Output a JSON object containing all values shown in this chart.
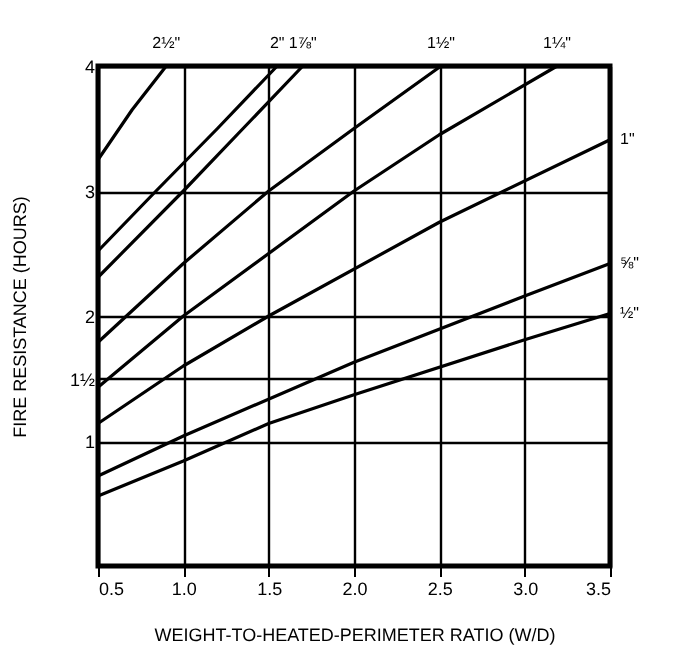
{
  "chart_data": {
    "type": "line",
    "xlabel": "WEIGHT-TO-HEATED-PERIMETER RATIO (W/D)",
    "ylabel": "FIRE RESISTANCE (HOURS)",
    "xlim": [
      0.5,
      3.5
    ],
    "ylim": [
      0,
      4
    ],
    "xticks": [
      {
        "value": 0.5,
        "label": "0.5"
      },
      {
        "value": 1.0,
        "label": "1.0"
      },
      {
        "value": 1.5,
        "label": "1.5"
      },
      {
        "value": 2.0,
        "label": "2.0"
      },
      {
        "value": 2.5,
        "label": "2.5"
      },
      {
        "value": 3.0,
        "label": "3.0"
      },
      {
        "value": 3.5,
        "label": "3.5"
      }
    ],
    "yticks": [
      1,
      {
        "value": 1.5,
        "label": "1½"
      },
      2,
      3,
      4
    ],
    "grid": true,
    "marker": "none",
    "line_style": "solid",
    "series": [
      {
        "name": "2½\"",
        "color": "#000000",
        "x": [
          0.5,
          0.7,
          0.9
        ],
        "values": [
          3.25,
          3.65,
          4.0
        ]
      },
      {
        "name": "2\"",
        "color": "#000000",
        "x": [
          0.5,
          0.84,
          1.2,
          1.55
        ],
        "values": [
          2.52,
          3.0,
          3.5,
          4.0
        ]
      },
      {
        "name": "1⅞\"",
        "color": "#000000",
        "x": [
          0.5,
          1.0,
          1.35,
          1.7
        ],
        "values": [
          2.31,
          3.0,
          3.5,
          4.0
        ]
      },
      {
        "name": "1½\"",
        "color": "#000000",
        "x": [
          0.5,
          1.0,
          1.5,
          2.0,
          2.51
        ],
        "values": [
          1.79,
          2.42,
          3.0,
          3.5,
          4.0
        ]
      },
      {
        "name": "1¼\"",
        "color": "#000000",
        "x": [
          0.5,
          1.0,
          2.0,
          2.5,
          3.19
        ],
        "values": [
          1.43,
          2.0,
          3.0,
          3.45,
          4.0
        ]
      },
      {
        "name": "1\"",
        "color": "#000000",
        "x": [
          0.5,
          1.0,
          1.5,
          2.5,
          3.5
        ],
        "values": [
          1.14,
          1.6,
          2.0,
          2.75,
          3.41
        ]
      },
      {
        "name": "⅝\"",
        "color": "#000000",
        "x": [
          0.5,
          1.0,
          2.0,
          3.0,
          3.5
        ],
        "values": [
          0.72,
          1.04,
          1.63,
          2.16,
          2.42
        ]
      },
      {
        "name": "½\"",
        "color": "#000000",
        "x": [
          0.5,
          1.0,
          1.5,
          2.0,
          3.0,
          3.5
        ],
        "values": [
          0.56,
          0.84,
          1.14,
          1.37,
          1.81,
          2.02
        ]
      }
    ]
  }
}
